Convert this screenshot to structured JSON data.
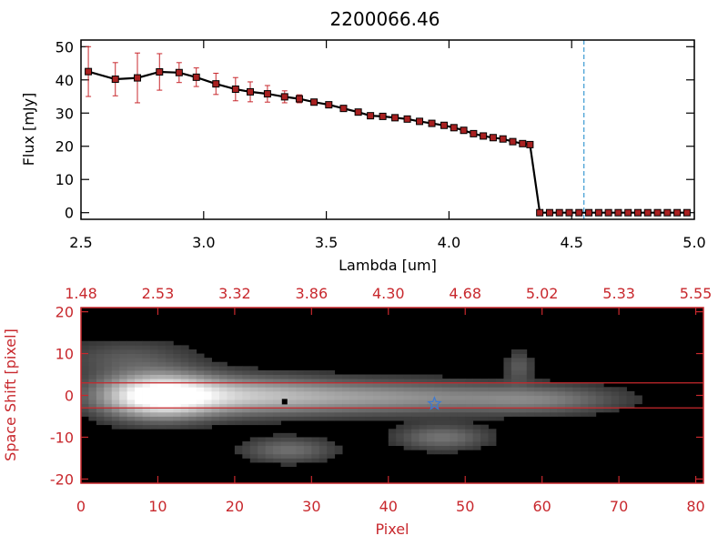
{
  "chart_data": [
    {
      "type": "line",
      "title": "2200066.46",
      "xlabel": "Lambda [um]",
      "ylabel": "Flux [mJy]",
      "xlim": [
        2.5,
        5.0
      ],
      "ylim": [
        -2,
        52
      ],
      "xticks": [
        "2.5",
        "3.0",
        "3.5",
        "4.0",
        "4.5",
        "5.0"
      ],
      "xtick_values": [
        2.5,
        3.0,
        3.5,
        4.0,
        4.5,
        5.0
      ],
      "yticks": [
        "0",
        "10",
        "20",
        "30",
        "40",
        "50"
      ],
      "ytick_values": [
        0,
        10,
        20,
        30,
        40,
        50
      ],
      "series": [
        {
          "name": "flux",
          "x": [
            2.53,
            2.64,
            2.73,
            2.82,
            2.9,
            2.97,
            3.05,
            3.13,
            3.19,
            3.26,
            3.33,
            3.39,
            3.45,
            3.51,
            3.57,
            3.63,
            3.68,
            3.73,
            3.78,
            3.83,
            3.88,
            3.93,
            3.98,
            4.02,
            4.06,
            4.1,
            4.14,
            4.18,
            4.22,
            4.26,
            4.3,
            4.33,
            4.37,
            4.41,
            4.45,
            4.49,
            4.53,
            4.57,
            4.61,
            4.65,
            4.69,
            4.73,
            4.77,
            4.81,
            4.85,
            4.89,
            4.93,
            4.97
          ],
          "y": [
            42.5,
            40.2,
            40.6,
            42.4,
            42.2,
            40.8,
            38.8,
            37.2,
            36.4,
            35.8,
            34.9,
            34.3,
            33.3,
            32.5,
            31.4,
            30.3,
            29.2,
            29.0,
            28.6,
            28.2,
            27.5,
            26.9,
            26.3,
            25.6,
            24.8,
            23.8,
            23.1,
            22.6,
            22.2,
            21.4,
            20.8,
            20.5,
            0,
            0,
            0,
            0,
            0,
            0,
            0,
            0,
            0,
            0,
            0,
            0,
            0,
            0,
            0,
            0
          ],
          "yerr": [
            7.5,
            5.0,
            7.5,
            5.5,
            3.0,
            2.8,
            3.2,
            3.5,
            3.0,
            2.5,
            1.8,
            1.2,
            0.9,
            0.8,
            0.7,
            0.6,
            0.6,
            0.6,
            0.6,
            0.6,
            0.6,
            0.6,
            0.6,
            0.6,
            0.6,
            0.6,
            0.6,
            0.6,
            0.6,
            0.6,
            0.6,
            0.6,
            0,
            0,
            0,
            0,
            0,
            0,
            0,
            0,
            0,
            0,
            0,
            0,
            0,
            0,
            0,
            0
          ]
        }
      ],
      "annotations": [
        {
          "type": "vline",
          "x": 4.55,
          "color": "#3c9ad2",
          "style": "dashed"
        }
      ],
      "colors": {
        "line": "#000000",
        "marker": "#a82020",
        "errorbar": "#c8282d"
      }
    },
    {
      "type": "heatmap",
      "xlabel": "Pixel",
      "ylabel": "Space Shift [pixel]",
      "xlim": [
        0,
        81
      ],
      "ylim": [
        -21,
        21
      ],
      "xticks": [
        "0",
        "10",
        "20",
        "30",
        "40",
        "50",
        "60",
        "70",
        "80"
      ],
      "xtick_values": [
        0,
        10,
        20,
        30,
        40,
        50,
        60,
        70,
        80
      ],
      "yticks": [
        "-20",
        "-10",
        "0",
        "10",
        "20"
      ],
      "ytick_values": [
        -20,
        -10,
        0,
        10,
        20
      ],
      "top_axis_label_values": [
        0,
        10,
        20,
        30,
        40,
        50,
        60,
        70,
        80
      ],
      "top_axis_labels": [
        "1.48",
        "2.53",
        "3.32",
        "3.86",
        "4.30",
        "4.68",
        "5.02",
        "5.33",
        "5.55"
      ],
      "extraction_window": [
        -3,
        3
      ],
      "source_marker": {
        "shape": "star",
        "x": 46,
        "y": -2,
        "color": "#3c7ad2"
      },
      "trace_blobs": [
        {
          "x": 10,
          "y": 0,
          "sx": 5,
          "sy": 3.5,
          "amp": 1.0
        },
        {
          "x": 20,
          "y": 0,
          "sx": 9,
          "sy": 3.0,
          "amp": 0.55
        },
        {
          "x": 40,
          "y": -0.5,
          "sx": 12,
          "sy": 2.6,
          "amp": 0.42
        },
        {
          "x": 60,
          "y": -1,
          "sx": 7,
          "sy": 2.2,
          "amp": 0.28
        },
        {
          "x": 6,
          "y": 9,
          "sx": 6,
          "sy": 3,
          "amp": 0.18
        },
        {
          "x": 27,
          "y": -13,
          "sx": 4,
          "sy": 2,
          "amp": 0.28
        },
        {
          "x": 47,
          "y": -10,
          "sx": 4,
          "sy": 2,
          "amp": 0.3
        },
        {
          "x": 57,
          "y": 7,
          "sx": 1.2,
          "sy": 2.5,
          "amp": 0.2
        }
      ],
      "colors": {
        "axis": "#c8282d",
        "window": "#c8282d"
      }
    }
  ]
}
